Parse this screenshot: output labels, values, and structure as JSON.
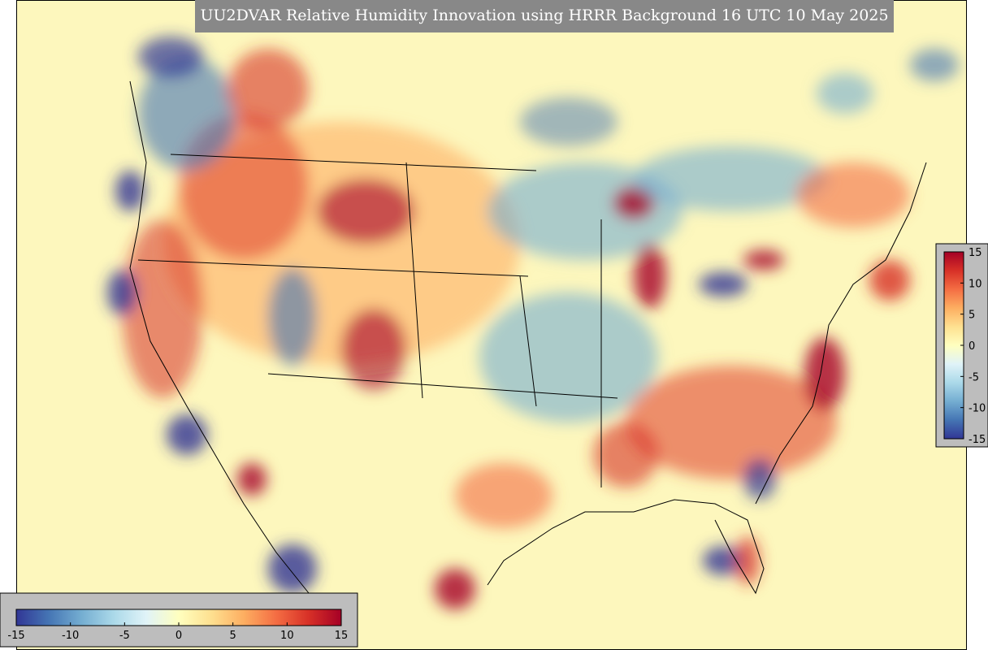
{
  "title": "UU2DVAR Relative Humidity Innovation using HRRR Background 16 UTC 10 May 2025",
  "colorbars": [
    {
      "orientation": "horizontal",
      "lim": [
        -15,
        15
      ],
      "ticks": [
        -15,
        -10,
        -5,
        0,
        5,
        10,
        15
      ]
    },
    {
      "orientation": "vertical",
      "lim": [
        -15,
        15
      ],
      "ticks": [
        15,
        10,
        5,
        0,
        -5,
        -10,
        -15
      ]
    }
  ],
  "colors": [
    "#313695",
    "#4575b4",
    "#74add1",
    "#abd9e9",
    "#e0f3f8",
    "#ffffbf",
    "#fee090",
    "#fdae61",
    "#f46d43",
    "#d73027",
    "#a50026"
  ]
}
